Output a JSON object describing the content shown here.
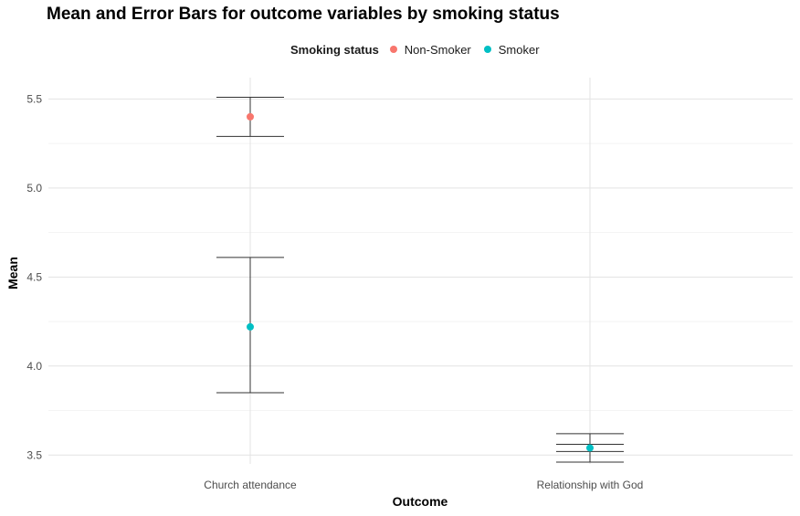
{
  "chart_data": {
    "type": "errorbar",
    "title": "Mean and Error Bars for outcome variables by smoking status",
    "xlabel": "Outcome",
    "ylabel": "Mean",
    "categories": [
      "Church attendance",
      "Relationship with God"
    ],
    "ylim": [
      3.45,
      5.62
    ],
    "yticks": [
      3.5,
      4.0,
      4.5,
      5.0,
      5.5
    ],
    "ytick_labels": [
      "3.5",
      "4.0",
      "4.5",
      "5.0",
      "5.5"
    ],
    "grid": true,
    "legend": {
      "title": "Smoking status",
      "position": "top"
    },
    "series": [
      {
        "name": "Non-Smoker",
        "color": "#F8766D",
        "points": [
          {
            "category": "Church attendance",
            "mean": 5.4,
            "lower": 5.29,
            "upper": 5.51
          }
        ]
      },
      {
        "name": "Smoker",
        "color": "#00BFC4",
        "points": [
          {
            "category": "Church attendance",
            "mean": 4.22,
            "lower": 3.85,
            "upper": 4.61
          },
          {
            "category": "Relationship with God",
            "mean": 3.54,
            "lower": 3.46,
            "upper": 3.62
          }
        ]
      }
    ],
    "extra_errorbars": [
      {
        "category": "Relationship with God",
        "lower": 3.52,
        "upper": 3.56
      }
    ]
  }
}
